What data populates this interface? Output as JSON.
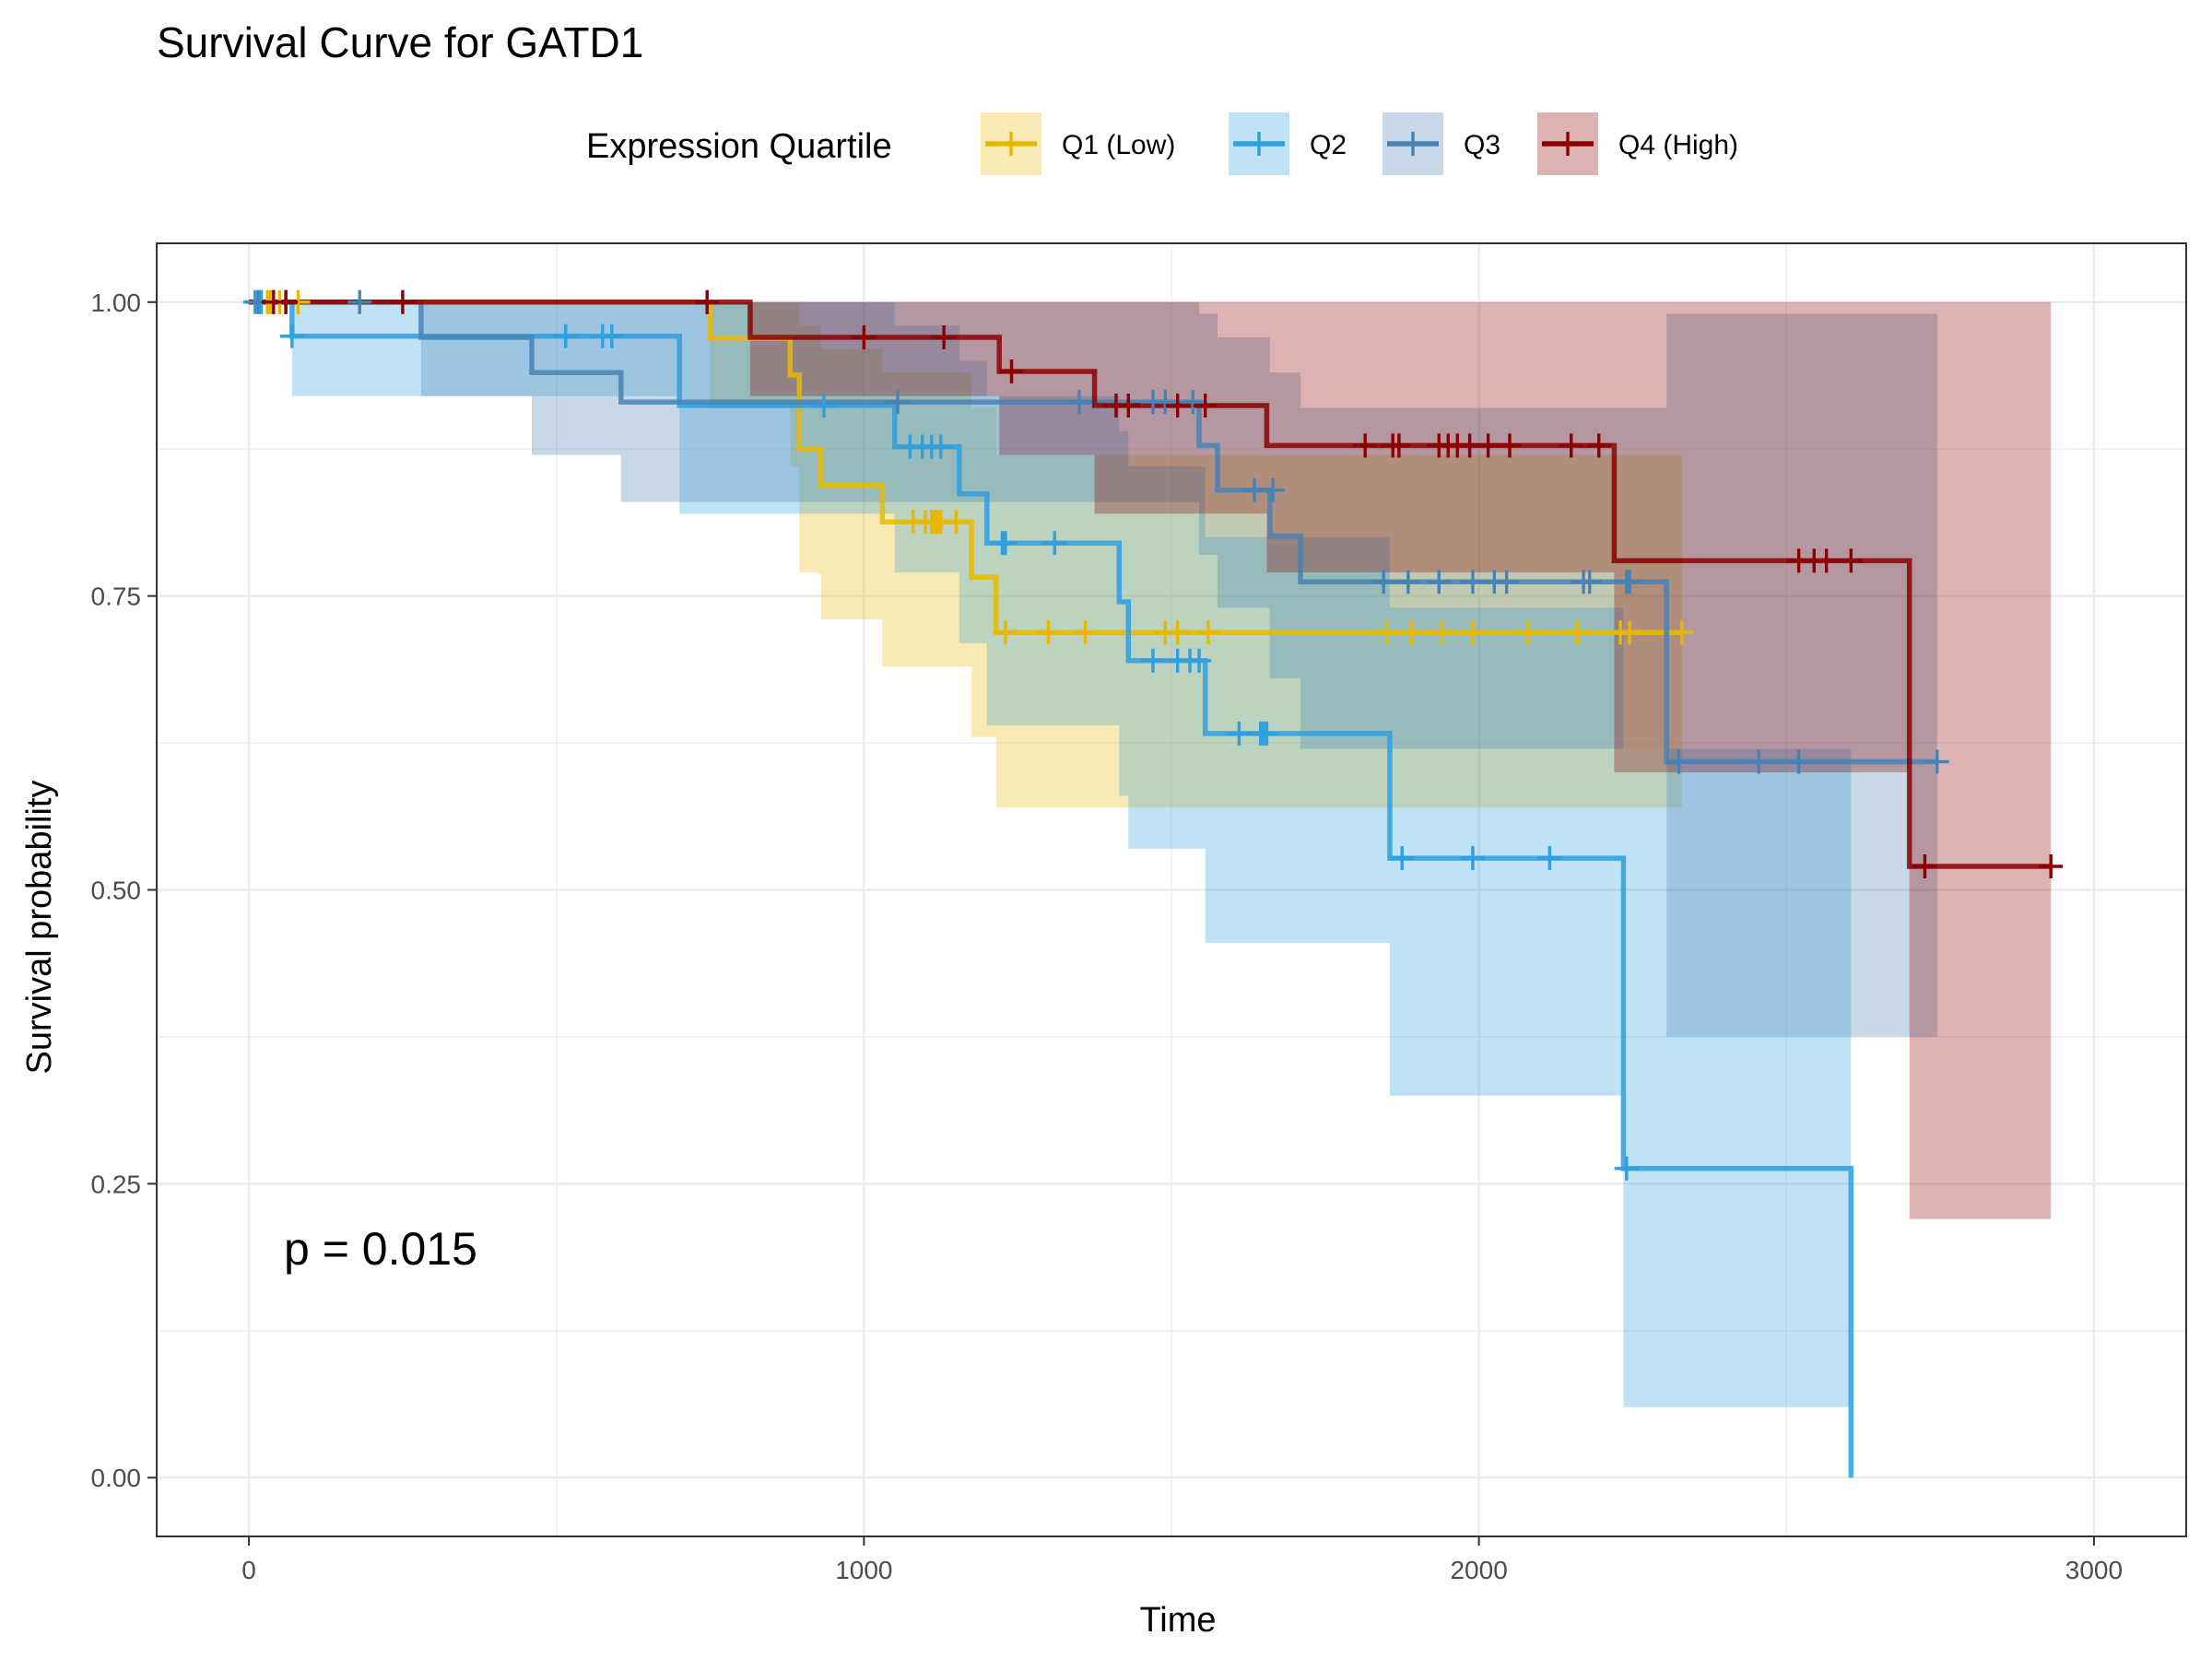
{
  "chart_data": {
    "type": "line",
    "title": "Survival Curve for GATD1",
    "xlabel": "Time",
    "ylabel": "Survival probability",
    "xlim": [
      -150,
      3150
    ],
    "ylim": [
      -0.05,
      1.05
    ],
    "xticks": [
      0,
      1000,
      2000,
      3000
    ],
    "yticks": [
      0.0,
      0.25,
      0.5,
      0.75,
      1.0
    ],
    "ytick_labels": [
      "0.00",
      "0.25",
      "0.50",
      "0.75",
      "1.00"
    ],
    "grid": true,
    "legend": {
      "title": "Expression Quartile",
      "position": "top",
      "entries": [
        "Q1 (Low)",
        "Q2",
        "Q3",
        "Q4 (High)"
      ]
    },
    "annotation": "p = 0.015",
    "series": [
      {
        "name": "Q1 (Low)",
        "color": "#E7B800",
        "steps": [
          [
            0,
            1.0
          ],
          [
            750,
            1.0
          ],
          [
            750,
            0.969
          ],
          [
            880,
            0.969
          ],
          [
            880,
            0.938
          ],
          [
            895,
            0.938
          ],
          [
            895,
            0.875
          ],
          [
            930,
            0.875
          ],
          [
            930,
            0.844
          ],
          [
            1030,
            0.844
          ],
          [
            1030,
            0.813
          ],
          [
            1175,
            0.813
          ],
          [
            1175,
            0.766
          ],
          [
            1215,
            0.766
          ],
          [
            1215,
            0.719
          ],
          [
            2330,
            0.719
          ]
        ],
        "upper": [
          [
            0,
            1.0
          ],
          [
            880,
            1.0
          ],
          [
            880,
            1.0
          ],
          [
            895,
            1.0
          ],
          [
            895,
            0.98
          ],
          [
            930,
            0.98
          ],
          [
            930,
            0.96
          ],
          [
            1030,
            0.96
          ],
          [
            1030,
            0.94
          ],
          [
            1175,
            0.94
          ],
          [
            1175,
            0.91
          ],
          [
            1215,
            0.91
          ],
          [
            1215,
            0.87
          ],
          [
            2330,
            0.87
          ]
        ],
        "lower": [
          [
            0,
            1.0
          ],
          [
            750,
            1.0
          ],
          [
            750,
            0.91
          ],
          [
            880,
            0.91
          ],
          [
            880,
            0.86
          ],
          [
            895,
            0.86
          ],
          [
            895,
            0.77
          ],
          [
            930,
            0.77
          ],
          [
            930,
            0.73
          ],
          [
            1030,
            0.73
          ],
          [
            1030,
            0.69
          ],
          [
            1175,
            0.69
          ],
          [
            1175,
            0.63
          ],
          [
            1215,
            0.63
          ],
          [
            1215,
            0.57
          ],
          [
            2330,
            0.57
          ]
        ],
        "censor_times": [
          20,
          30,
          35,
          40,
          50,
          60,
          80,
          1080,
          1100,
          1110,
          1115,
          1120,
          1125,
          1150,
          1230,
          1300,
          1360,
          1490,
          1510,
          1560,
          1850,
          1890,
          1940,
          1990,
          2080,
          2160,
          2230,
          2245,
          2330
        ],
        "censor_values": [
          1,
          1,
          1,
          1,
          1,
          1,
          1,
          0.813,
          0.813,
          0.813,
          0.813,
          0.813,
          0.813,
          0.813,
          0.719,
          0.719,
          0.719,
          0.719,
          0.719,
          0.719,
          0.719,
          0.719,
          0.719,
          0.719,
          0.719,
          0.719,
          0.719,
          0.719,
          0.719
        ]
      },
      {
        "name": "Q2",
        "color": "#2E9FDF",
        "steps": [
          [
            0,
            1.0
          ],
          [
            70,
            1.0
          ],
          [
            70,
            0.971
          ],
          [
            700,
            0.971
          ],
          [
            700,
            0.912
          ],
          [
            1050,
            0.912
          ],
          [
            1050,
            0.877
          ],
          [
            1155,
            0.877
          ],
          [
            1155,
            0.837
          ],
          [
            1200,
            0.837
          ],
          [
            1200,
            0.795
          ],
          [
            1415,
            0.795
          ],
          [
            1415,
            0.745
          ],
          [
            1430,
            0.745
          ],
          [
            1430,
            0.695
          ],
          [
            1555,
            0.695
          ],
          [
            1555,
            0.633
          ],
          [
            1855,
            0.633
          ],
          [
            1855,
            0.527
          ],
          [
            2235,
            0.527
          ],
          [
            2235,
            0.263
          ],
          [
            2605,
            0.263
          ],
          [
            2605,
            0.0
          ]
        ],
        "upper": [
          [
            0,
            1.0
          ],
          [
            70,
            1.0
          ],
          [
            70,
            1.0
          ],
          [
            700,
            1.0
          ],
          [
            700,
            1.0
          ],
          [
            1050,
            1.0
          ],
          [
            1050,
            0.98
          ],
          [
            1155,
            0.98
          ],
          [
            1155,
            0.95
          ],
          [
            1200,
            0.95
          ],
          [
            1200,
            0.92
          ],
          [
            1415,
            0.92
          ],
          [
            1415,
            0.89
          ],
          [
            1430,
            0.89
          ],
          [
            1430,
            0.86
          ],
          [
            1555,
            0.86
          ],
          [
            1555,
            0.8
          ],
          [
            1855,
            0.8
          ],
          [
            1855,
            0.74
          ],
          [
            2235,
            0.74
          ],
          [
            2235,
            0.62
          ],
          [
            2605,
            0.62
          ]
        ],
        "lower": [
          [
            0,
            1.0
          ],
          [
            70,
            1.0
          ],
          [
            70,
            0.92
          ],
          [
            700,
            0.92
          ],
          [
            700,
            0.82
          ],
          [
            1050,
            0.82
          ],
          [
            1050,
            0.77
          ],
          [
            1155,
            0.77
          ],
          [
            1155,
            0.71
          ],
          [
            1200,
            0.71
          ],
          [
            1200,
            0.64
          ],
          [
            1415,
            0.64
          ],
          [
            1415,
            0.58
          ],
          [
            1430,
            0.58
          ],
          [
            1430,
            0.535
          ],
          [
            1555,
            0.535
          ],
          [
            1555,
            0.455
          ],
          [
            1855,
            0.455
          ],
          [
            1855,
            0.325
          ],
          [
            2235,
            0.325
          ],
          [
            2235,
            0.06
          ],
          [
            2605,
            0.06
          ]
        ],
        "censor_times": [
          10,
          20,
          70,
          515,
          575,
          590,
          935,
          1075,
          1095,
          1110,
          1125,
          1225,
          1230,
          1310,
          1470,
          1510,
          1530,
          1545,
          1610,
          1645,
          1650,
          1655,
          1875,
          1990,
          2115,
          2240
        ],
        "censor_values": [
          1,
          1,
          0.971,
          0.971,
          0.971,
          0.971,
          0.912,
          0.877,
          0.877,
          0.877,
          0.877,
          0.795,
          0.795,
          0.795,
          0.695,
          0.695,
          0.695,
          0.695,
          0.633,
          0.633,
          0.633,
          0.633,
          0.527,
          0.527,
          0.527,
          0.263
        ]
      },
      {
        "name": "Q3",
        "color": "#4682B4",
        "steps": [
          [
            0,
            1.0
          ],
          [
            280,
            1.0
          ],
          [
            280,
            0.97
          ],
          [
            460,
            0.97
          ],
          [
            460,
            0.94
          ],
          [
            605,
            0.94
          ],
          [
            605,
            0.915
          ],
          [
            1545,
            0.915
          ],
          [
            1545,
            0.878
          ],
          [
            1575,
            0.878
          ],
          [
            1575,
            0.84
          ],
          [
            1660,
            0.84
          ],
          [
            1660,
            0.801
          ],
          [
            1710,
            0.801
          ],
          [
            1710,
            0.762
          ],
          [
            2305,
            0.762
          ],
          [
            2305,
            0.609
          ],
          [
            2745,
            0.609
          ]
        ],
        "upper": [
          [
            0,
            1.0
          ],
          [
            280,
            1.0
          ],
          [
            280,
            1.0
          ],
          [
            460,
            1.0
          ],
          [
            460,
            1.0
          ],
          [
            605,
            1.0
          ],
          [
            605,
            1.0
          ],
          [
            1545,
            1.0
          ],
          [
            1545,
            0.99
          ],
          [
            1575,
            0.99
          ],
          [
            1575,
            0.97
          ],
          [
            1660,
            0.97
          ],
          [
            1660,
            0.94
          ],
          [
            1710,
            0.94
          ],
          [
            1710,
            0.91
          ],
          [
            2305,
            0.91
          ],
          [
            2305,
            0.99
          ],
          [
            2745,
            0.99
          ]
        ],
        "lower": [
          [
            0,
            1.0
          ],
          [
            280,
            1.0
          ],
          [
            280,
            0.92
          ],
          [
            460,
            0.92
          ],
          [
            460,
            0.87
          ],
          [
            605,
            0.87
          ],
          [
            605,
            0.83
          ],
          [
            1545,
            0.83
          ],
          [
            1545,
            0.785
          ],
          [
            1575,
            0.785
          ],
          [
            1575,
            0.74
          ],
          [
            1660,
            0.74
          ],
          [
            1660,
            0.68
          ],
          [
            1710,
            0.68
          ],
          [
            1710,
            0.62
          ],
          [
            2305,
            0.62
          ],
          [
            2305,
            0.375
          ],
          [
            2745,
            0.375
          ]
        ],
        "censor_times": [
          15,
          40,
          60,
          180,
          1055,
          1350,
          1470,
          1490,
          1535,
          1635,
          1665,
          1845,
          1885,
          1935,
          1990,
          2025,
          2045,
          2170,
          2180,
          2240,
          2245,
          2325,
          2455,
          2520,
          2745
        ],
        "censor_values": [
          1,
          1,
          1,
          1,
          0.915,
          0.915,
          0.915,
          0.915,
          0.915,
          0.84,
          0.84,
          0.762,
          0.762,
          0.762,
          0.762,
          0.762,
          0.762,
          0.762,
          0.762,
          0.762,
          0.762,
          0.609,
          0.609,
          0.609,
          0.609
        ]
      },
      {
        "name": "Q4 (High)",
        "color": "#8B0000",
        "steps": [
          [
            0,
            1.0
          ],
          [
            815,
            1.0
          ],
          [
            815,
            0.97
          ],
          [
            1220,
            0.97
          ],
          [
            1220,
            0.941
          ],
          [
            1375,
            0.941
          ],
          [
            1375,
            0.912
          ],
          [
            1655,
            0.912
          ],
          [
            1655,
            0.878
          ],
          [
            2220,
            0.878
          ],
          [
            2220,
            0.78
          ],
          [
            2700,
            0.78
          ],
          [
            2700,
            0.52
          ],
          [
            2930,
            0.52
          ]
        ],
        "upper": [
          [
            0,
            1.0
          ],
          [
            815,
            1.0
          ],
          [
            815,
            1.0
          ],
          [
            1220,
            1.0
          ],
          [
            1220,
            1.0
          ],
          [
            1375,
            1.0
          ],
          [
            1375,
            1.0
          ],
          [
            1655,
            1.0
          ],
          [
            1655,
            1.0
          ],
          [
            2220,
            1.0
          ],
          [
            2220,
            1.0
          ],
          [
            2700,
            1.0
          ],
          [
            2700,
            1.0
          ],
          [
            2930,
            1.0
          ]
        ],
        "lower": [
          [
            0,
            1.0
          ],
          [
            815,
            1.0
          ],
          [
            815,
            0.92
          ],
          [
            1220,
            0.92
          ],
          [
            1220,
            0.87
          ],
          [
            1375,
            0.87
          ],
          [
            1375,
            0.82
          ],
          [
            1655,
            0.82
          ],
          [
            1655,
            0.77
          ],
          [
            2220,
            0.77
          ],
          [
            2220,
            0.6
          ],
          [
            2700,
            0.6
          ],
          [
            2700,
            0.22
          ],
          [
            2930,
            0.22
          ]
        ],
        "censor_times": [
          40,
          60,
          250,
          745,
          1000,
          1130,
          1240,
          1410,
          1430,
          1510,
          1555,
          1815,
          1860,
          1870,
          1935,
          1950,
          1965,
          1985,
          2015,
          2050,
          2150,
          2195,
          2520,
          2545,
          2565,
          2605,
          2725,
          2930
        ],
        "censor_values": [
          1,
          1,
          1,
          1,
          0.97,
          0.97,
          0.941,
          0.912,
          0.912,
          0.912,
          0.912,
          0.878,
          0.878,
          0.878,
          0.878,
          0.878,
          0.878,
          0.878,
          0.878,
          0.878,
          0.878,
          0.878,
          0.78,
          0.78,
          0.78,
          0.78,
          0.52,
          0.52
        ]
      }
    ]
  }
}
